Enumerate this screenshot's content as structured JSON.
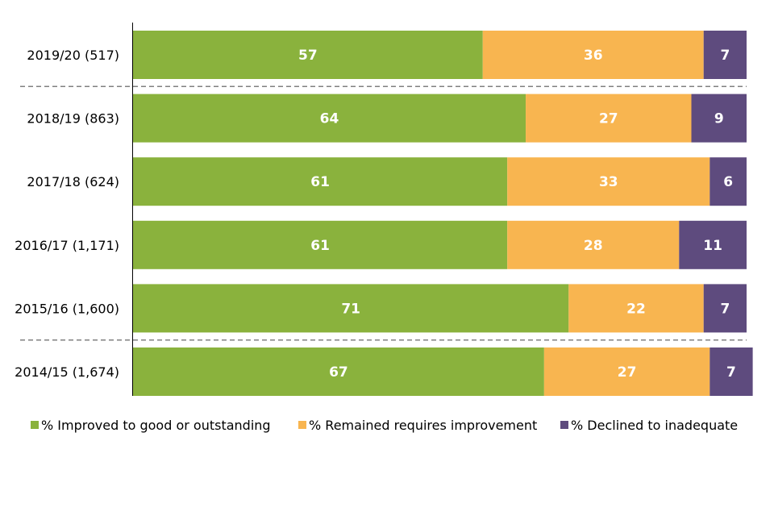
{
  "chart_data": {
    "type": "bar",
    "orientation": "horizontal",
    "stacked": true,
    "categories": [
      "2019/20 (517)",
      "2018/19 (863)",
      "2017/18 (624)",
      "2016/17 (1,171)",
      "2015/16 (1,600)",
      "2014/15 (1,674)"
    ],
    "series": [
      {
        "name": "% Improved to good or outstanding",
        "color": "#8AB23D",
        "values": [
          57,
          64,
          61,
          61,
          71,
          67
        ]
      },
      {
        "name": "% Remained requires improvement",
        "color": "#F8B550",
        "values": [
          36,
          27,
          33,
          28,
          22,
          27
        ]
      },
      {
        "name": "% Declined to inadequate",
        "color": "#5E4B7E",
        "values": [
          7,
          9,
          6,
          11,
          7,
          7
        ]
      }
    ],
    "xlim": [
      0,
      100
    ],
    "data_labels": true,
    "grid": false,
    "legend_position": "bottom",
    "separators_after_category_index": [
      0,
      4
    ],
    "separator_color": "#808080"
  }
}
